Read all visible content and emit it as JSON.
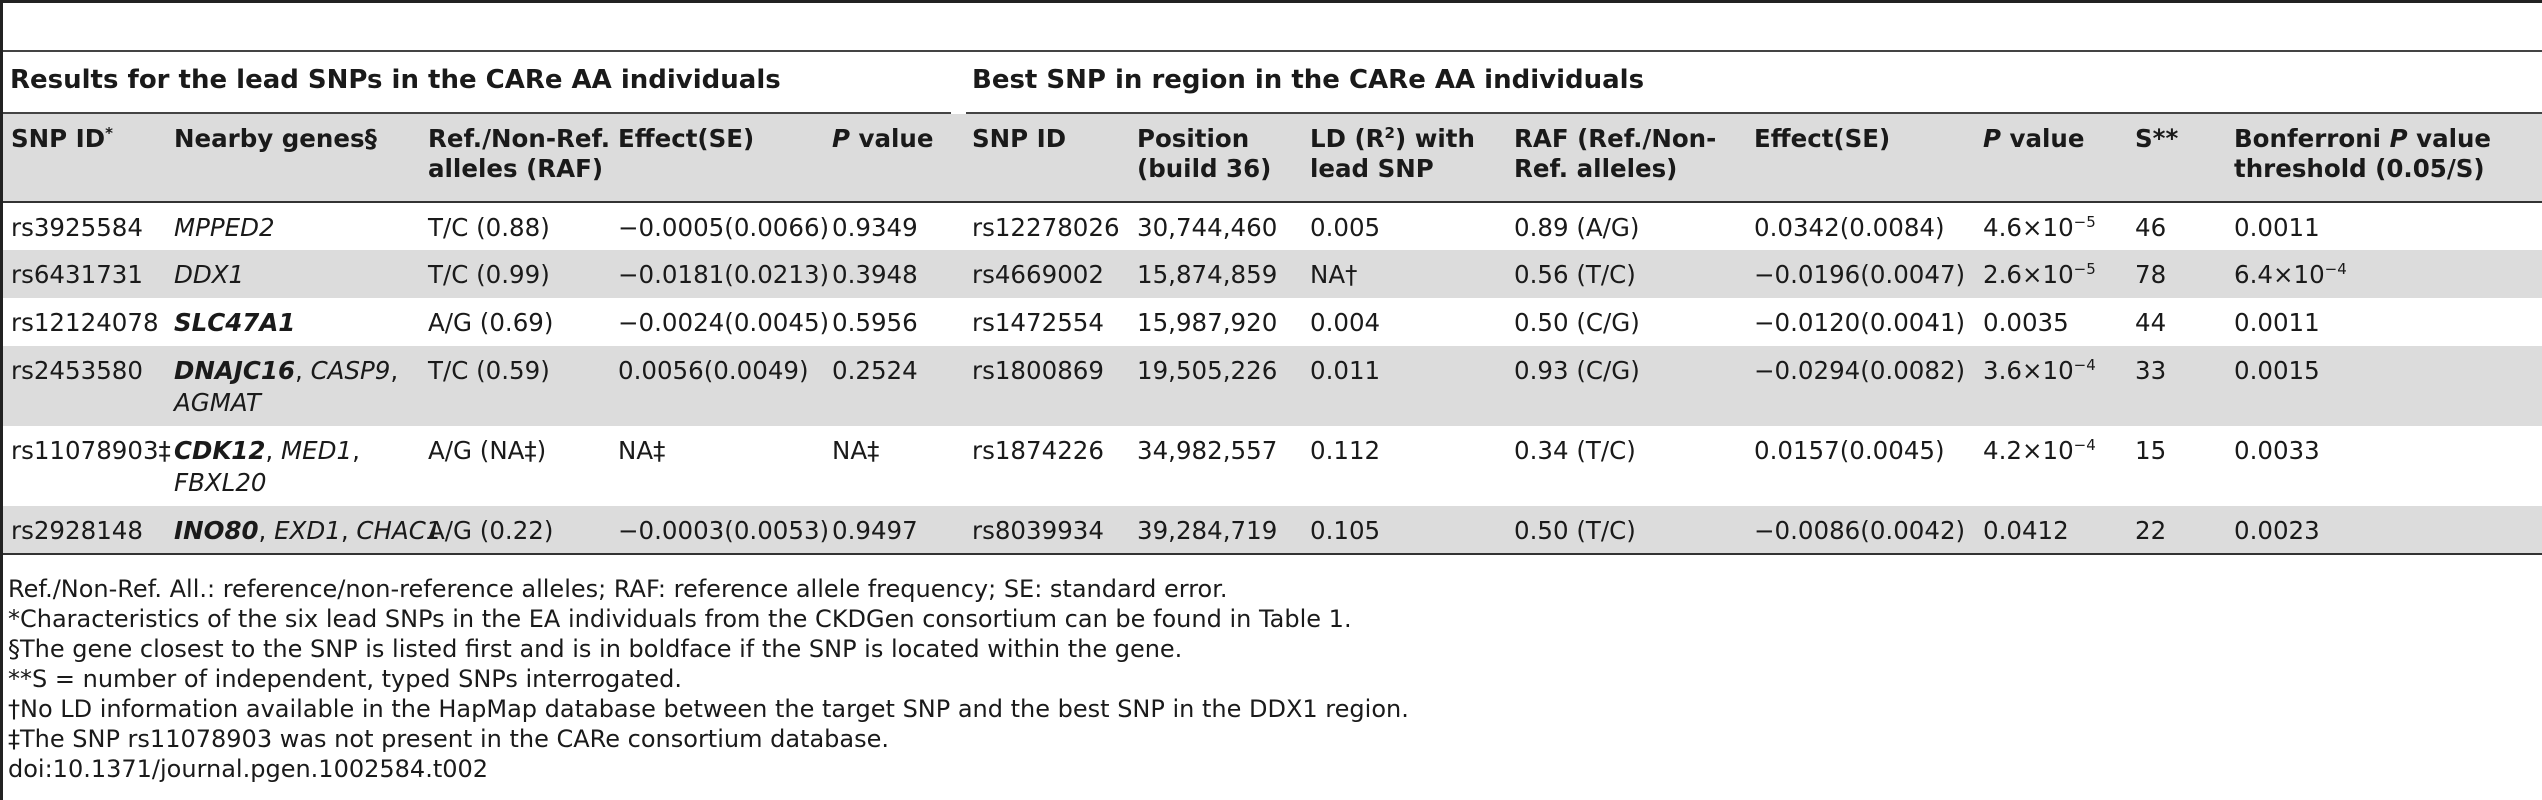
{
  "groups": {
    "left": "Results for the lead SNPs in the CARe AA individuals",
    "right": "Best SNP in region in the CARe AA individuals"
  },
  "headers": {
    "snp_id": "SNP ID",
    "snp_id_mark": "*",
    "nearby_genes": "Nearby genes§",
    "alleles_l1": "Ref./Non-Ref.",
    "alleles_l2": "alleles (RAF)",
    "effect": "Effect(SE)",
    "p_italic": "P",
    "p_rest": " value",
    "best_snp_id": "SNP ID",
    "position_l1": "Position",
    "position_l2": "(build 36)",
    "ld_l1a": "LD (R",
    "ld_sup": "2",
    "ld_l1b": ") with",
    "ld_l2": "lead SNP",
    "raf_l1": "RAF (Ref./Non-",
    "raf_l2": "Ref. alleles)",
    "effect2": "Effect(SE)",
    "p2_italic": "P",
    "p2_rest": " value",
    "s": "S**",
    "bonf_l1a": "Bonferroni ",
    "bonf_p": "P",
    "bonf_l1b": " value",
    "bonf_l2": "threshold (0.05/S)"
  },
  "rows": [
    {
      "snp": "rs3925584",
      "genes": [
        {
          "name": "MPPED2",
          "bold": false
        }
      ],
      "alleles": "T/C (0.88)",
      "effect": "−0.0005(0.0066)",
      "p": "0.9349",
      "best_snp": "rs12278026",
      "position": "30,744,460",
      "ld": "0.005",
      "raf": "0.89 (A/G)",
      "effect2": "0.0342(0.0084)",
      "p2_base": "4.6×10",
      "p2_exp": "−5",
      "s": "46",
      "bonf_base": "0.0011",
      "bonf_exp": ""
    },
    {
      "snp": "rs6431731",
      "genes": [
        {
          "name": "DDX1",
          "bold": false
        }
      ],
      "alleles": "T/C (0.99)",
      "effect": "−0.0181(0.0213)",
      "p": "0.3948",
      "best_snp": "rs4669002",
      "position": "15,874,859",
      "ld": "NA†",
      "raf": "0.56 (T/C)",
      "effect2": "−0.0196(0.0047)",
      "p2_base": "2.6×10",
      "p2_exp": "−5",
      "s": "78",
      "bonf_base": "6.4×10",
      "bonf_exp": "−4"
    },
    {
      "snp": "rs12124078",
      "genes": [
        {
          "name": "SLC47A1",
          "bold": true
        }
      ],
      "alleles": "A/G (0.69)",
      "effect": "−0.0024(0.0045)",
      "p": "0.5956",
      "best_snp": "rs1472554",
      "position": "15,987,920",
      "ld": "0.004",
      "raf": "0.50 (C/G)",
      "effect2": "−0.0120(0.0041)",
      "p2_base": "0.0035",
      "p2_exp": "",
      "s": "44",
      "bonf_base": "0.0011",
      "bonf_exp": ""
    },
    {
      "snp": "rs2453580",
      "genes_line1": [
        {
          "name": "DNAJC16",
          "bold": true
        },
        {
          "name": "CASP9",
          "bold": false
        }
      ],
      "genes_line2": [
        {
          "name": "AGMAT",
          "bold": false
        }
      ],
      "alleles": "T/C (0.59)",
      "effect": "0.0056(0.0049)",
      "p": "0.2524",
      "best_snp": "rs1800869",
      "position": "19,505,226",
      "ld": "0.011",
      "raf": "0.93 (C/G)",
      "effect2": "−0.0294(0.0082)",
      "p2_base": "3.6×10",
      "p2_exp": "−4",
      "s": "33",
      "bonf_base": "0.0015",
      "bonf_exp": ""
    },
    {
      "snp": "rs11078903‡",
      "genes_line1": [
        {
          "name": "CDK12",
          "bold": true
        },
        {
          "name": "MED1",
          "bold": false
        }
      ],
      "genes_line2": [
        {
          "name": "FBXL20",
          "bold": false
        }
      ],
      "alleles": "A/G (NA‡)",
      "effect": "NA‡",
      "p": "NA‡",
      "best_snp": "rs1874226",
      "position": "34,982,557",
      "ld": "0.112",
      "raf": "0.34 (T/C)",
      "effect2": "0.0157(0.0045)",
      "p2_base": "4.2×10",
      "p2_exp": "−4",
      "s": "15",
      "bonf_base": "0.0033",
      "bonf_exp": ""
    },
    {
      "snp": "rs2928148",
      "genes": [
        {
          "name": "INO80",
          "bold": true
        },
        {
          "name": "EXD1",
          "bold": false
        },
        {
          "name": "CHAC1",
          "bold": false
        }
      ],
      "alleles": "A/G (0.22)",
      "effect": "−0.0003(0.0053)",
      "p": "0.9497",
      "best_snp": "rs8039934",
      "position": "39,284,719",
      "ld": "0.105",
      "raf": "0.50 (T/C)",
      "effect2": "−0.0086(0.0042)",
      "p2_base": "0.0412",
      "p2_exp": "",
      "s": "22",
      "bonf_base": "0.0023",
      "bonf_exp": ""
    }
  ],
  "footnotes": [
    "Ref./Non-Ref. All.: reference/non-reference alleles; RAF: reference allele frequency; SE: standard error.",
    "*Characteristics of the six lead SNPs in the EA individuals from the CKDGen consortium can be found in Table 1.",
    "§The gene closest to the SNP is listed first and is in boldface if the SNP is located within the gene.",
    "**S = number of independent, typed SNPs interrogated.",
    "†No LD information available in the HapMap database between the target SNP and the best SNP in the DDX1 region.",
    "‡The SNP rs11078903 was not present in the CARe consortium database.",
    "doi:10.1371/journal.pgen.1002584.t002"
  ]
}
